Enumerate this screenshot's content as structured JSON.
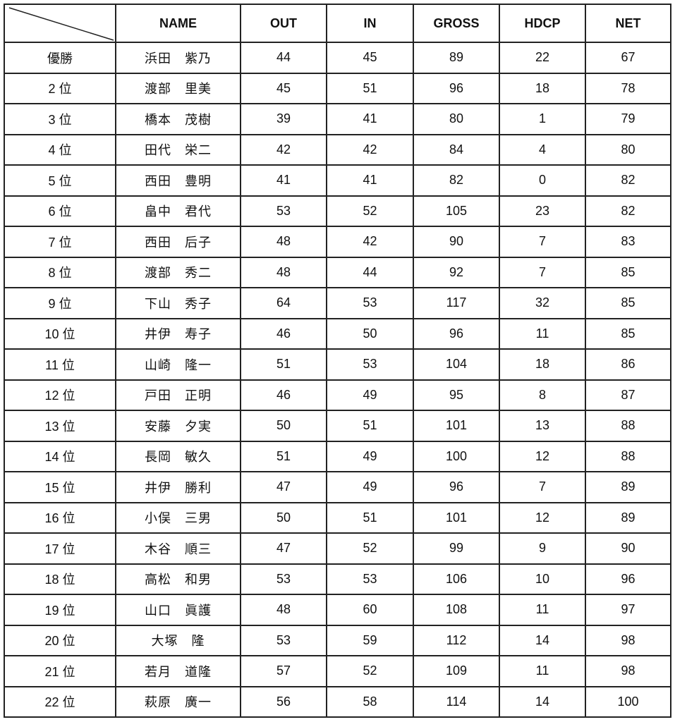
{
  "table": {
    "headers": [
      "",
      "NAME",
      "OUT",
      "IN",
      "GROSS",
      "HDCP",
      "NET"
    ],
    "rows": [
      [
        "優勝",
        "浜田　紫乃",
        "44",
        "45",
        "89",
        "22",
        "67"
      ],
      [
        "2 位",
        "渡部　里美",
        "45",
        "51",
        "96",
        "18",
        "78"
      ],
      [
        "3 位",
        "橋本　茂樹",
        "39",
        "41",
        "80",
        "1",
        "79"
      ],
      [
        "4 位",
        "田代　栄二",
        "42",
        "42",
        "84",
        "4",
        "80"
      ],
      [
        "5 位",
        "西田　豊明",
        "41",
        "41",
        "82",
        "0",
        "82"
      ],
      [
        "6 位",
        "畠中　君代",
        "53",
        "52",
        "105",
        "23",
        "82"
      ],
      [
        "7 位",
        "西田　后子",
        "48",
        "42",
        "90",
        "7",
        "83"
      ],
      [
        "8 位",
        "渡部　秀二",
        "48",
        "44",
        "92",
        "7",
        "85"
      ],
      [
        "9 位",
        "下山　秀子",
        "64",
        "53",
        "117",
        "32",
        "85"
      ],
      [
        "10 位",
        "井伊　寿子",
        "46",
        "50",
        "96",
        "11",
        "85"
      ],
      [
        "11 位",
        "山崎　隆一",
        "51",
        "53",
        "104",
        "18",
        "86"
      ],
      [
        "12 位",
        "戸田　正明",
        "46",
        "49",
        "95",
        "8",
        "87"
      ],
      [
        "13 位",
        "安藤　夕実",
        "50",
        "51",
        "101",
        "13",
        "88"
      ],
      [
        "14 位",
        "長岡　敏久",
        "51",
        "49",
        "100",
        "12",
        "88"
      ],
      [
        "15 位",
        "井伊　勝利",
        "47",
        "49",
        "96",
        "7",
        "89"
      ],
      [
        "16 位",
        "小俣　三男",
        "50",
        "51",
        "101",
        "12",
        "89"
      ],
      [
        "17 位",
        "木谷　順三",
        "47",
        "52",
        "99",
        "9",
        "90"
      ],
      [
        "18 位",
        "高松　和男",
        "53",
        "53",
        "106",
        "10",
        "96"
      ],
      [
        "19 位",
        "山口　眞護",
        "48",
        "60",
        "108",
        "11",
        "97"
      ],
      [
        "20 位",
        "大塚　隆",
        "53",
        "59",
        "112",
        "14",
        "98"
      ],
      [
        "21 位",
        "若月　道隆",
        "57",
        "52",
        "109",
        "11",
        "98"
      ],
      [
        "22 位",
        "萩原　廣一",
        "56",
        "58",
        "114",
        "14",
        "100"
      ]
    ]
  }
}
